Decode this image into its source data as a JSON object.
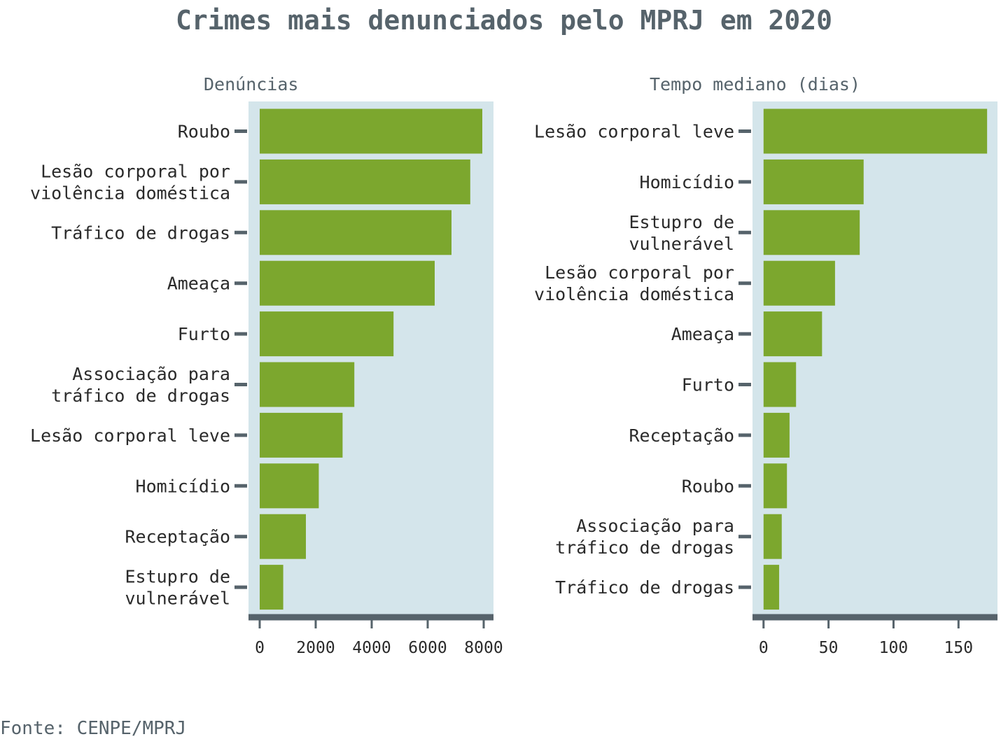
{
  "title": "Crimes mais denunciados pelo MPRJ em 2020",
  "caption": "Fonte: CENPE/MPRJ",
  "colors": {
    "bar": "#7ca72e",
    "panel": "#d4e5eb",
    "axis": "#56636b",
    "text": "#2a2a2a"
  },
  "chart_data": [
    {
      "type": "bar",
      "orientation": "horizontal",
      "subtitle": "Denúncias",
      "categories": [
        [
          "Roubo"
        ],
        [
          "Lesão corporal por",
          "violência doméstica"
        ],
        [
          "Tráfico de drogas"
        ],
        [
          "Ameaça"
        ],
        [
          "Furto"
        ],
        [
          "Associação para",
          "tráfico de drogas"
        ],
        [
          "Lesão corporal leve"
        ],
        [
          "Homicídio"
        ],
        [
          "Receptação"
        ],
        [
          "Estupro de",
          "vulnerável"
        ]
      ],
      "values": [
        7950,
        7520,
        6850,
        6250,
        4780,
        3380,
        2960,
        2110,
        1650,
        840
      ],
      "xlim": [
        -400,
        8350
      ],
      "xticks": [
        "0",
        "2000",
        "4000",
        "6000",
        "8000"
      ],
      "xtick_values": [
        0,
        2000,
        4000,
        6000,
        8000
      ],
      "grid": false
    },
    {
      "type": "bar",
      "orientation": "horizontal",
      "subtitle": "Tempo mediano (dias)",
      "categories": [
        [
          "Lesão corporal leve"
        ],
        [
          "Homicídio"
        ],
        [
          "Estupro de",
          "vulnerável"
        ],
        [
          "Lesão corporal por",
          "violência doméstica"
        ],
        [
          "Ameaça"
        ],
        [
          "Furto"
        ],
        [
          "Receptação"
        ],
        [
          "Roubo"
        ],
        [
          "Associação para",
          "tráfico de drogas"
        ],
        [
          "Tráfico de drogas"
        ]
      ],
      "values": [
        172,
        77,
        74,
        55,
        45,
        25,
        20,
        18,
        14,
        12
      ],
      "xlim": [
        -8.5,
        180
      ],
      "xticks": [
        "0",
        "50",
        "100",
        "150"
      ],
      "xtick_values": [
        0,
        50,
        100,
        150
      ],
      "grid": false
    }
  ]
}
